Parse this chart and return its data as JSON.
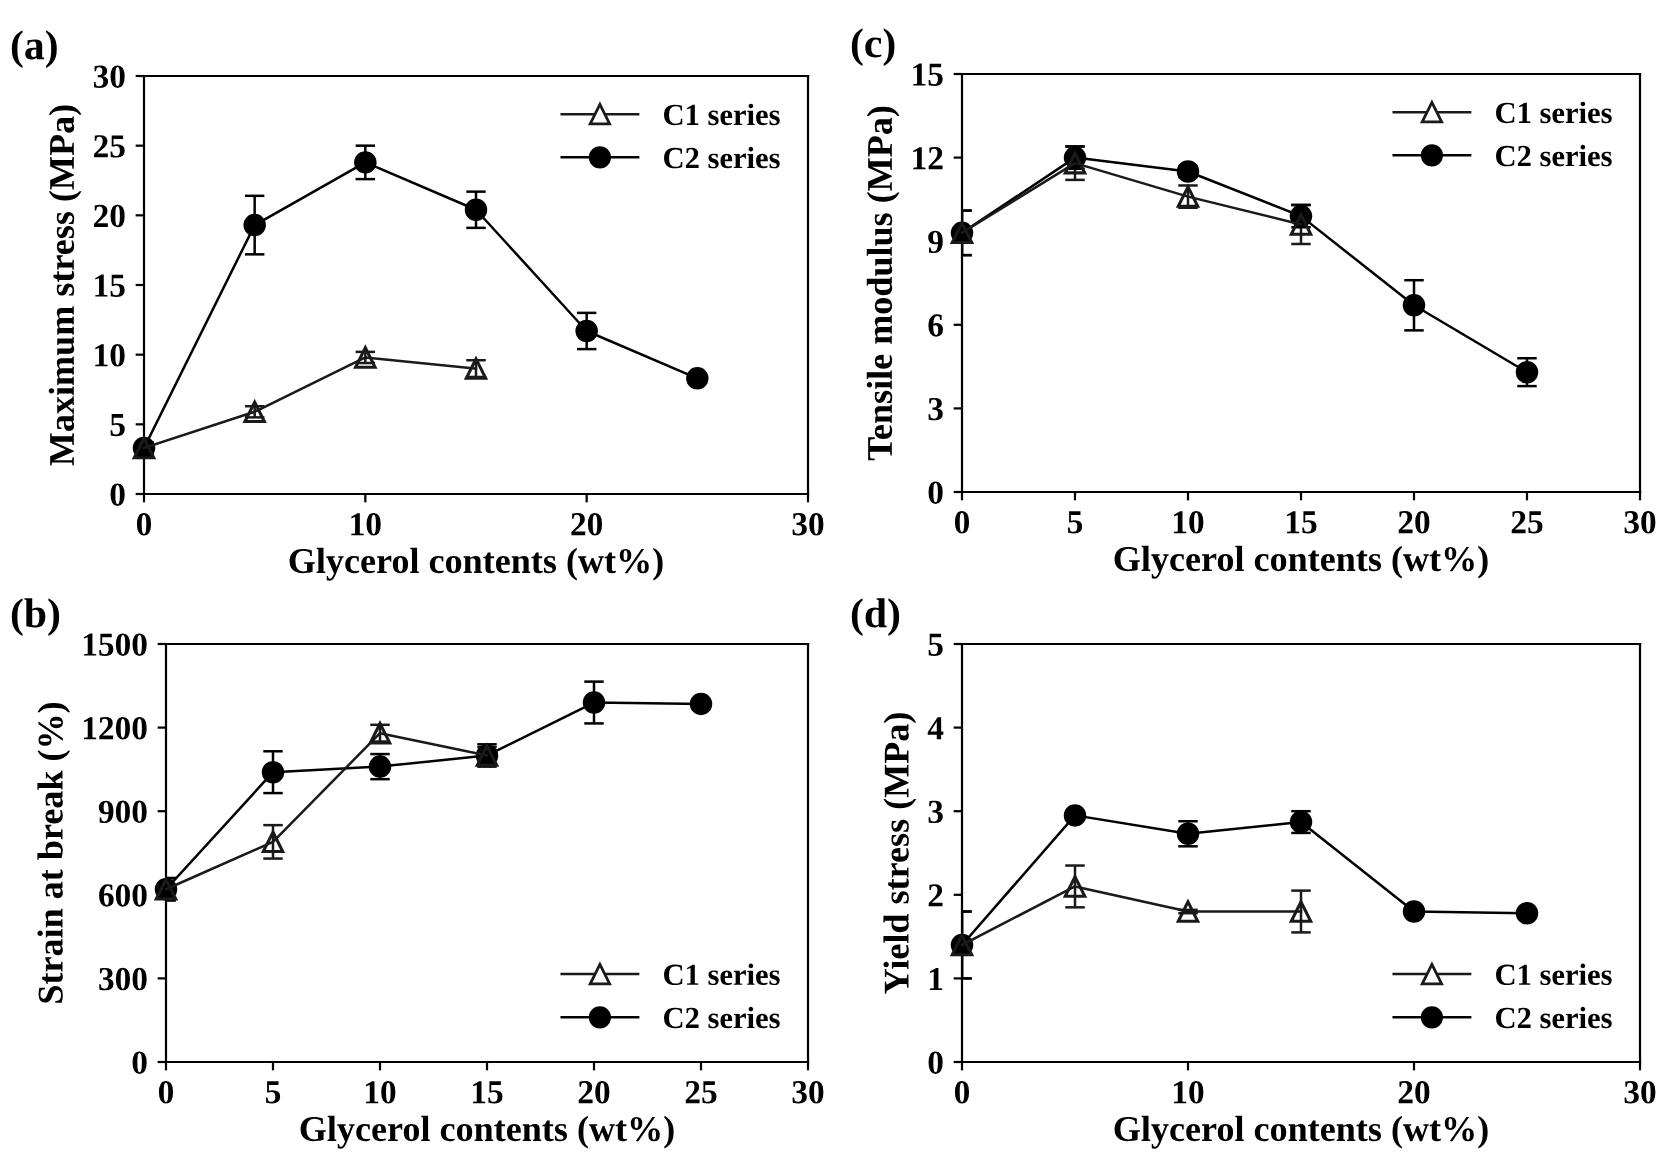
{
  "chart_data": [
    {
      "type": "line",
      "title": "(a)",
      "xlabel": "Glycerol contents (wt%)",
      "ylabel": "Maximum stress (MPa)",
      "xlim": [
        0,
        30
      ],
      "xticks": [
        0,
        10,
        20,
        30
      ],
      "ylim": [
        0,
        30
      ],
      "yticks": [
        0,
        5,
        10,
        15,
        20,
        25,
        30
      ],
      "legend": "top right",
      "grid": false,
      "series": [
        {
          "name": "C1 series",
          "color": "#1a1a1a",
          "marker": "triangle",
          "x": [
            0,
            5,
            10,
            15
          ],
          "values": [
            3.3,
            5.9,
            9.8,
            9.0
          ],
          "errors": [
            0.4,
            0.4,
            0.4,
            0.6
          ]
        },
        {
          "name": "C2 series",
          "color": "#000000",
          "marker": "circle",
          "x": [
            0,
            5,
            10,
            15,
            20,
            25
          ],
          "values": [
            3.3,
            19.3,
            23.8,
            20.4,
            11.7,
            8.3
          ],
          "errors": [
            0.4,
            2.1,
            1.2,
            1.3,
            1.3,
            0.2
          ]
        }
      ]
    },
    {
      "type": "line",
      "title": "(c)",
      "xlabel": "Glycerol contents (wt%)",
      "ylabel": "Tensile modulus (MPa)",
      "xlim": [
        0,
        30
      ],
      "xticks": [
        0,
        5,
        10,
        15,
        20,
        25,
        30
      ],
      "ylim": [
        0,
        15
      ],
      "yticks": [
        0,
        3,
        6,
        9,
        12,
        15
      ],
      "legend": "top right",
      "grid": false,
      "series": [
        {
          "name": "C1 series",
          "color": "#1a1a1a",
          "marker": "triangle",
          "x": [
            0,
            5,
            10,
            15
          ],
          "values": [
            9.3,
            11.8,
            10.6,
            9.6
          ],
          "errors": [
            0.8,
            0.6,
            0.4,
            0.7
          ]
        },
        {
          "name": "C2 series",
          "color": "#000000",
          "marker": "circle",
          "x": [
            0,
            5,
            10,
            15,
            20,
            25
          ],
          "values": [
            9.3,
            12.0,
            11.5,
            9.9,
            6.7,
            4.3
          ],
          "errors": [
            0.8,
            0.4,
            0.2,
            0.4,
            0.9,
            0.5
          ]
        }
      ]
    },
    {
      "type": "line",
      "title": "(b)",
      "xlabel": "Glycerol contents (wt%)",
      "ylabel": "Strain at break (%)",
      "xlim": [
        0,
        30
      ],
      "xticks": [
        0,
        5,
        10,
        15,
        20,
        25,
        30
      ],
      "ylim": [
        0,
        1500
      ],
      "yticks": [
        0,
        300,
        600,
        900,
        1200,
        1500
      ],
      "legend": "bottom right",
      "grid": false,
      "series": [
        {
          "name": "C1 series",
          "color": "#1a1a1a",
          "marker": "triangle",
          "x": [
            0,
            5,
            10,
            15
          ],
          "values": [
            620,
            790,
            1180,
            1100
          ],
          "errors": [
            40,
            60,
            30,
            30
          ]
        },
        {
          "name": "C2 series",
          "color": "#000000",
          "marker": "circle",
          "x": [
            0,
            5,
            10,
            15,
            20,
            25
          ],
          "values": [
            620,
            1040,
            1060,
            1100,
            1290,
            1285
          ],
          "errors": [
            40,
            75,
            45,
            40,
            75,
            15
          ]
        }
      ]
    },
    {
      "type": "line",
      "title": "(d)",
      "xlabel": "Glycerol contents (wt%)",
      "ylabel": "Yield stress (MPa)",
      "xlim": [
        0,
        30
      ],
      "xticks": [
        0,
        10,
        20,
        30
      ],
      "ylim": [
        0,
        5
      ],
      "yticks": [
        0,
        1,
        2,
        3,
        4,
        5
      ],
      "legend": "bottom right",
      "grid": false,
      "series": [
        {
          "name": "C1 series",
          "color": "#1a1a1a",
          "marker": "triangle",
          "x": [
            0,
            5,
            10,
            15
          ],
          "values": [
            1.4,
            2.1,
            1.8,
            1.8
          ],
          "errors": [
            0.4,
            0.25,
            0.02,
            0.25
          ]
        },
        {
          "name": "C2 series",
          "color": "#000000",
          "marker": "circle",
          "x": [
            0,
            5,
            10,
            15,
            20,
            25
          ],
          "values": [
            1.4,
            2.95,
            2.73,
            2.87,
            1.8,
            1.78
          ],
          "errors": [
            0.4,
            0.05,
            0.15,
            0.13,
            0.02,
            0.02
          ]
        }
      ]
    }
  ]
}
